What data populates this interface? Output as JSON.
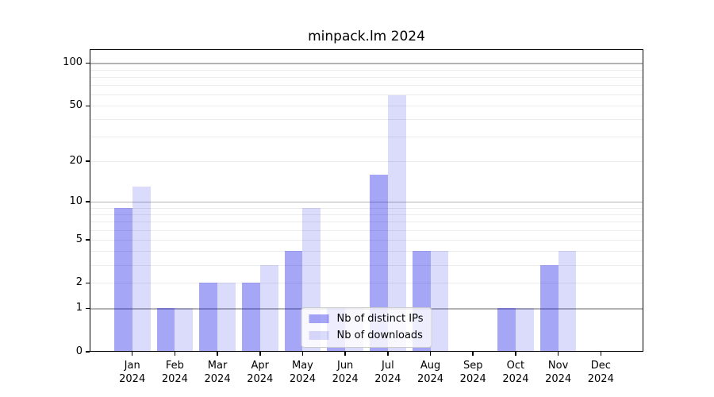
{
  "chart_data": {
    "type": "bar",
    "title": "minpack.lm 2024",
    "categories": [
      "Jan 2024",
      "Feb 2024",
      "Mar 2024",
      "Apr 2024",
      "May 2024",
      "Jun 2024",
      "Jul 2024",
      "Aug 2024",
      "Sep 2024",
      "Oct 2024",
      "Nov 2024",
      "Dec 2024"
    ],
    "series": [
      {
        "name": "Nb of distinct IPs",
        "color": "rgba(0,0,230,0.35)",
        "values": [
          9,
          1,
          2,
          2,
          4,
          1,
          16,
          4,
          0,
          1,
          3,
          0
        ]
      },
      {
        "name": "Nb of downloads",
        "color": "rgba(0,0,230,0.14)",
        "values": [
          13,
          1,
          2,
          3,
          9,
          1,
          59,
          4,
          0,
          1,
          4,
          0
        ]
      }
    ],
    "xlabel": "",
    "ylabel": "",
    "yscale": "log1p",
    "ylim": [
      0,
      125
    ],
    "ytick_labels": [
      0,
      1,
      2,
      5,
      10,
      20,
      50,
      100
    ],
    "ygrid_major": [
      1,
      10,
      100
    ],
    "ygrid_minor": [
      2,
      3,
      4,
      5,
      6,
      7,
      8,
      9,
      20,
      30,
      40,
      50,
      60,
      70,
      80,
      90
    ],
    "grid": true,
    "grid_major_color": "#b4b4b4",
    "grid_minor_color": "#ececec",
    "axis_color": "#000000",
    "background_color": "#ffffff",
    "legend_position": "lower center"
  }
}
